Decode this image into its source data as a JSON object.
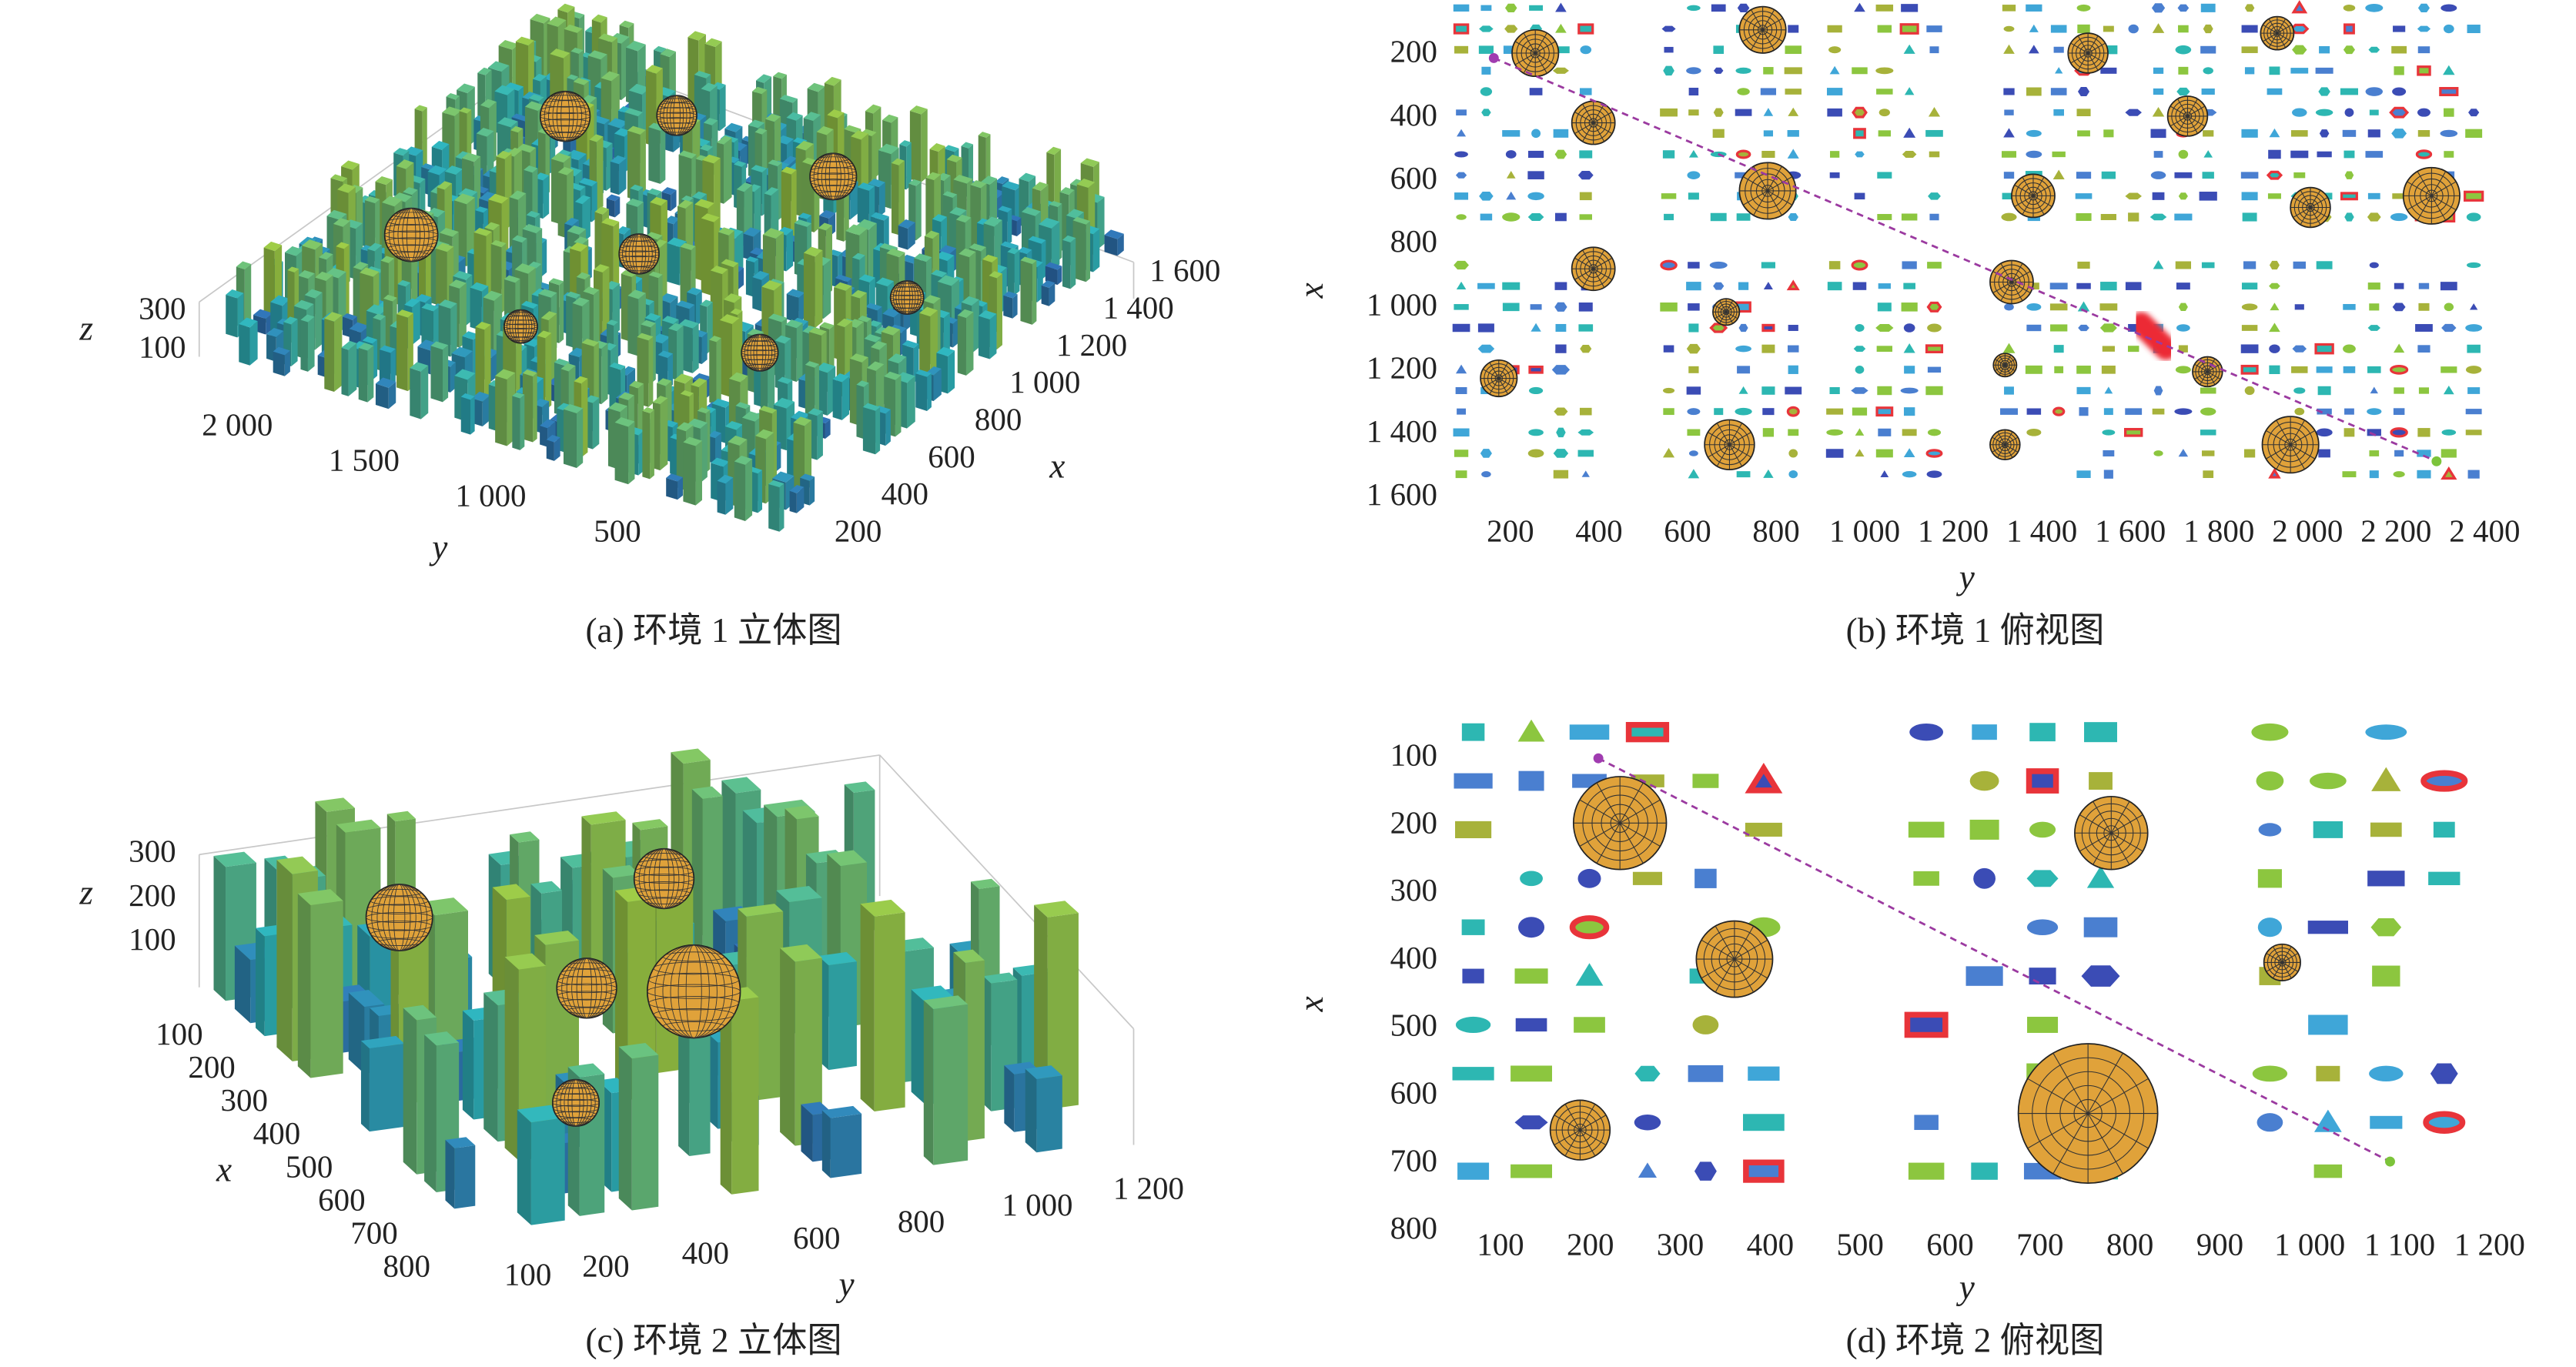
{
  "panels": [
    {
      "caption": "(a) 环境 1 立体图",
      "x_label": "x",
      "y_label": "y",
      "z_label": "z",
      "z_ticks": [
        "300",
        "100"
      ],
      "y_ticks": [
        "2 000",
        "1 500",
        "1 000",
        "500"
      ],
      "x_ticks": [
        "200",
        "400",
        "600",
        "800",
        "1 000",
        "1 200",
        "1 400",
        "1 600"
      ]
    },
    {
      "caption": "(b) 环境 1 俯视图",
      "x_label": "x",
      "y_label": "y",
      "x_ticks": [
        "200",
        "400",
        "600",
        "800",
        "1 000",
        "1 200",
        "1 400",
        "1 600"
      ],
      "y_ticks": [
        "200",
        "400",
        "600",
        "800",
        "1 000",
        "1 200",
        "1 400",
        "1 600",
        "1 800",
        "2 000",
        "2 200",
        "2 400"
      ]
    },
    {
      "caption": "(c) 环境 2 立体图",
      "x_label": "x",
      "y_label": "y",
      "z_label": "z",
      "z_ticks": [
        "300",
        "200",
        "100"
      ],
      "x_ticks": [
        "100",
        "200",
        "300",
        "400",
        "500",
        "600",
        "700",
        "800"
      ],
      "y_ticks": [
        "100",
        "200",
        "400",
        "600",
        "800",
        "1 000",
        "1 200"
      ]
    },
    {
      "caption": "(d) 环境 2 俯视图",
      "x_label": "x",
      "y_label": "y",
      "x_ticks": [
        "100",
        "200",
        "300",
        "400",
        "500",
        "600",
        "700",
        "800"
      ],
      "y_ticks": [
        "100",
        "200",
        "300",
        "400",
        "500",
        "600",
        "700",
        "800",
        "900",
        "1 000",
        "1 100",
        "1 200"
      ]
    }
  ]
}
